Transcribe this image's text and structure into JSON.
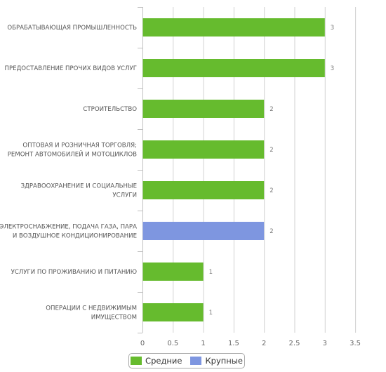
{
  "chart_data": {
    "type": "bar",
    "orientation": "horizontal",
    "categories": [
      [
        "ОБРАБАТЫВАЮЩАЯ ПРОМЫШЛЕННОСТЬ"
      ],
      [
        "ПРЕДОСТАВЛЕНИЕ ПРОЧИХ ВИДОВ УСЛУГ"
      ],
      [
        "СТРОИТЕЛЬСТВО"
      ],
      [
        "ОПТОВАЯ И РОЗНИЧНАЯ ТОРГОВЛЯ;",
        "РЕМОНТ АВТОМОБИЛЕЙ И МОТОЦИКЛОВ"
      ],
      [
        "ЗДРАВООХРАНЕНИЕ И СОЦИАЛЬНЫЕ",
        "УСЛУГИ"
      ],
      [
        "ЭЛЕКТРОСНАБЖЕНИЕ, ПОДАЧА ГАЗА, ПАРА",
        "И ВОЗДУШНОЕ КОНДИЦИОНИРОВАНИЕ"
      ],
      [
        "УСЛУГИ ПО ПРОЖИВАНИЮ И ПИТАНИЮ"
      ],
      [
        "ОПЕРАЦИИ С НЕДВИЖИМЫМ",
        "ИМУЩЕСТВОМ"
      ]
    ],
    "series": [
      {
        "name": "Средние",
        "color": "#66bb2e",
        "values": [
          3,
          3,
          2,
          2,
          2,
          null,
          1,
          1
        ]
      },
      {
        "name": "Крупные",
        "color": "#7e96e0",
        "values": [
          null,
          null,
          null,
          null,
          null,
          2,
          null,
          null
        ]
      }
    ],
    "xlim": [
      0,
      3.5
    ],
    "x_ticks": [
      "0",
      "0.5",
      "1",
      "1.5",
      "2",
      "2.5",
      "3",
      "3.5"
    ],
    "x_tick_values": [
      0,
      0.5,
      1,
      1.5,
      2,
      2.5,
      3,
      3.5
    ],
    "data_labels": [
      "3",
      "3",
      "2",
      "2",
      "2",
      "2",
      "1",
      "1"
    ],
    "grid": true,
    "legend_position": "bottom-center"
  }
}
